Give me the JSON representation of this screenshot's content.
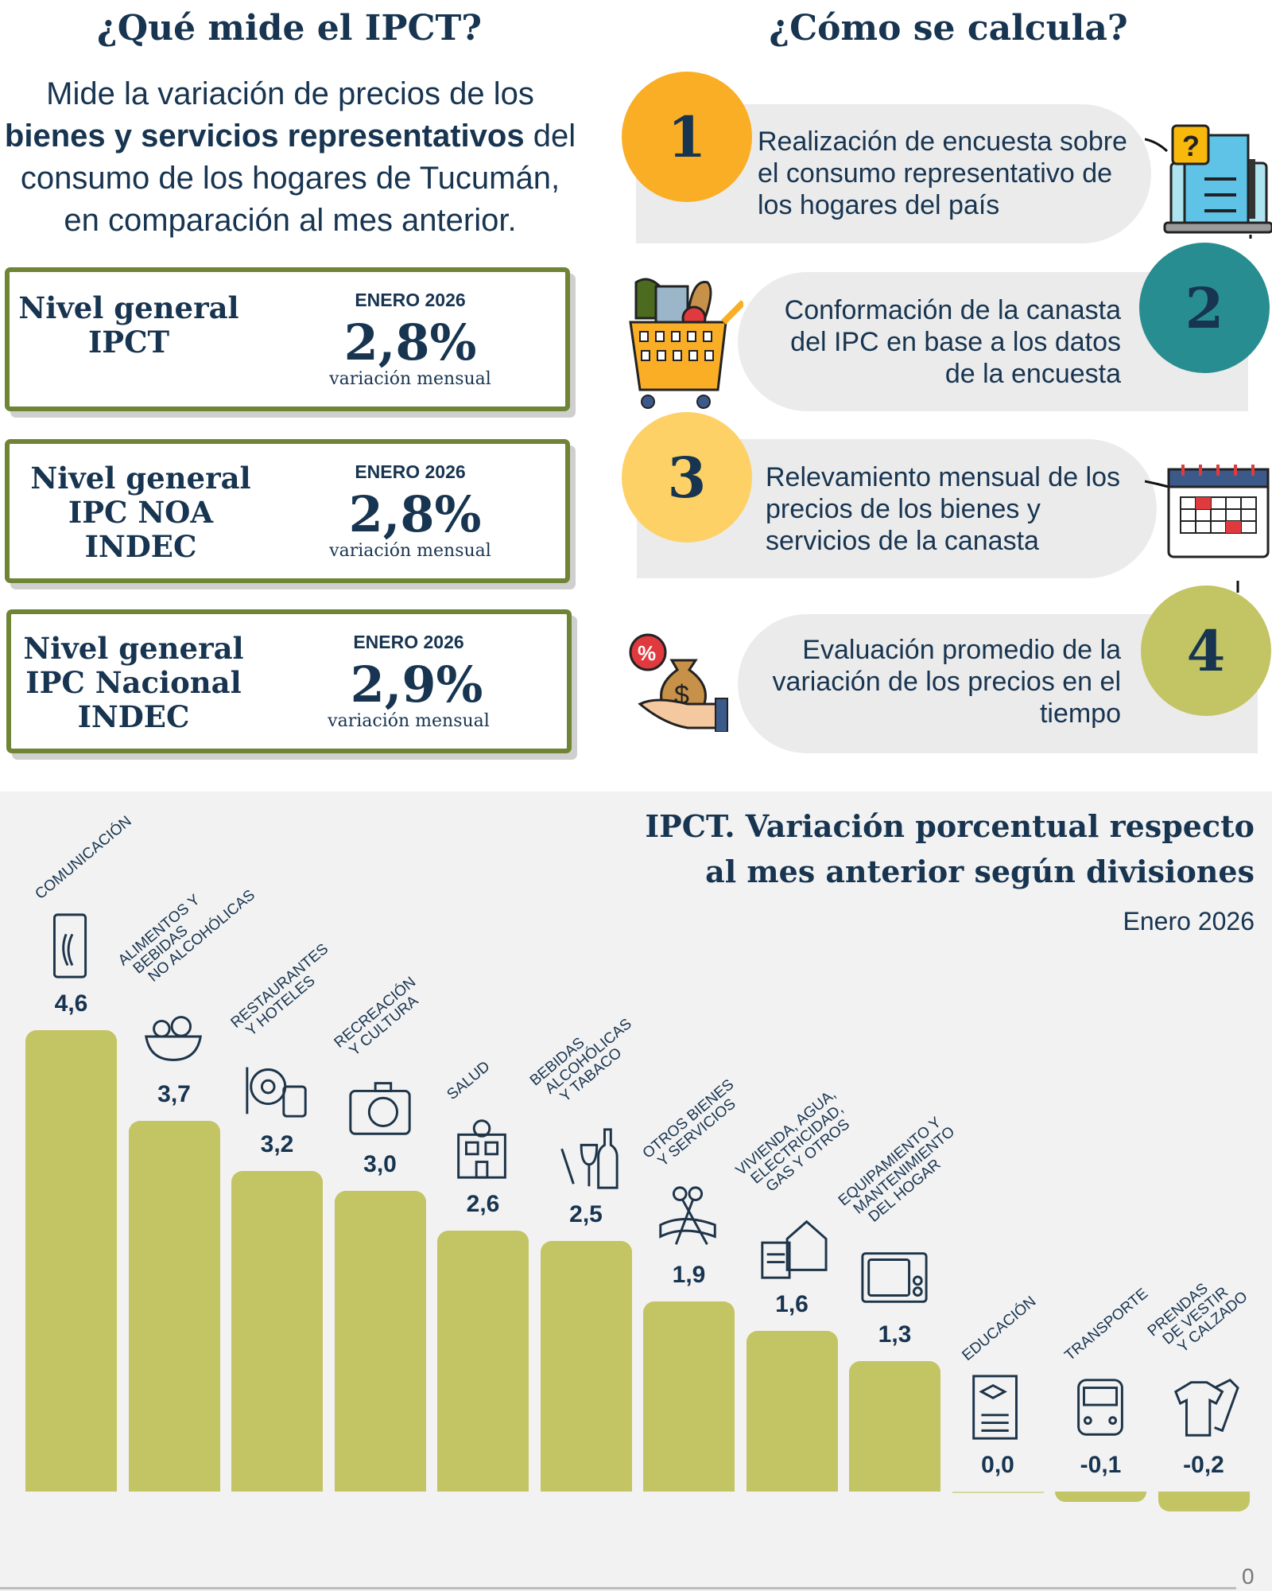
{
  "left": {
    "title": "¿Qué mide el IPCT?",
    "description": {
      "part1": "Mide la variación de precios de los",
      "bold": "bienes y servicios representativos",
      "part2": "del consumo de los hogares de Tucumán, en comparación al mes anterior."
    },
    "indicators": [
      {
        "title": "Nivel general IPCT",
        "period": "ENERO 2026",
        "value": "2,8%",
        "caption": "variación mensual"
      },
      {
        "title": "Nivel general IPC NOA INDEC",
        "period": "ENERO 2026",
        "value": "2,8%",
        "caption": "variación mensual"
      },
      {
        "title": "Nivel general IPC Nacional INDEC",
        "period": "ENERO 2026",
        "value": "2,9%",
        "caption": "variación mensual"
      }
    ]
  },
  "right": {
    "title": "¿Cómo se calcula?",
    "steps": [
      {
        "number": "1",
        "text": "Realización de encuesta sobre el consumo representativo de los hogares del país",
        "color": "#f9ae26",
        "icon": "survey-laptop-icon"
      },
      {
        "number": "2",
        "text": "Conformación de la canasta del IPC en base a los datos de la encuesta",
        "color": "#288d90",
        "icon": "shopping-cart-icon"
      },
      {
        "number": "3",
        "text": "Relevamiento mensual de los precios de los bienes y servicios de la canasta",
        "color": "#fdd166",
        "icon": "calendar-icon"
      },
      {
        "number": "4",
        "text": "Evaluación promedio de la variación de los precios en el tiempo",
        "color": "#c3c464",
        "icon": "money-bag-hand-icon"
      }
    ]
  },
  "chart_data": {
    "type": "bar",
    "title": "IPCT. Variación porcentual respecto al mes anterior según divisiones",
    "title_lines": [
      "IPCT. Variación porcentual respecto",
      "al mes anterior según divisiones"
    ],
    "subtitle": "Enero 2026",
    "categories": [
      "Comunicación",
      "Alimentos y bebidas no alcohólicas",
      "Restaurantes y hoteles",
      "Recreación y cultura",
      "Salud",
      "Bebidas alcohólicas y tabaco",
      "Otros bienes y servicios",
      "Vivienda, agua, electricidad, gas y otros",
      "Equipamiento y mantenimiento del hogar",
      "Educación",
      "Transporte",
      "Prendas de vestir y calzado"
    ],
    "category_lines": [
      [
        "Comunicación"
      ],
      [
        "Alimentos y",
        "bebidas",
        "no alcohólicas"
      ],
      [
        "Restaurantes",
        "y hoteles"
      ],
      [
        "Recreación",
        "y cultura"
      ],
      [
        "Salud"
      ],
      [
        "Bebidas",
        "alcohólicas",
        "y tabaco"
      ],
      [
        "Otros bienes",
        "y servicios"
      ],
      [
        "Vivienda, agua,",
        "electricidad,",
        "gas y otros"
      ],
      [
        "Equipamiento y",
        "mantenimiento",
        "del hogar"
      ],
      [
        "Educación"
      ],
      [
        "Transporte"
      ],
      [
        "Prendas",
        "de vestir",
        "y calzado"
      ]
    ],
    "values": [
      4.6,
      3.7,
      3.2,
      3.0,
      2.6,
      2.5,
      1.9,
      1.6,
      1.3,
      0.0,
      -0.1,
      -0.2
    ],
    "value_labels": [
      "4,6",
      "3,7",
      "3,2",
      "3,0",
      "2,6",
      "2,5",
      "1,9",
      "1,6",
      "1,3",
      "0,0",
      "-0,1",
      "-0,2"
    ],
    "icons": [
      "smartphone-icon",
      "food-bowl-icon",
      "restaurant-luggage-icon",
      "camera-icon",
      "hospital-icon",
      "wine-bottle-icon",
      "scissors-ribbon-icon",
      "house-document-icon",
      "microwave-icon",
      "diploma-icon",
      "bus-icon",
      "clothes-icon"
    ],
    "axis_zero_label": "0",
    "bar_color": "#c3c464",
    "ylim": [
      -0.2,
      4.6
    ],
    "grid": false,
    "legend": "none"
  }
}
